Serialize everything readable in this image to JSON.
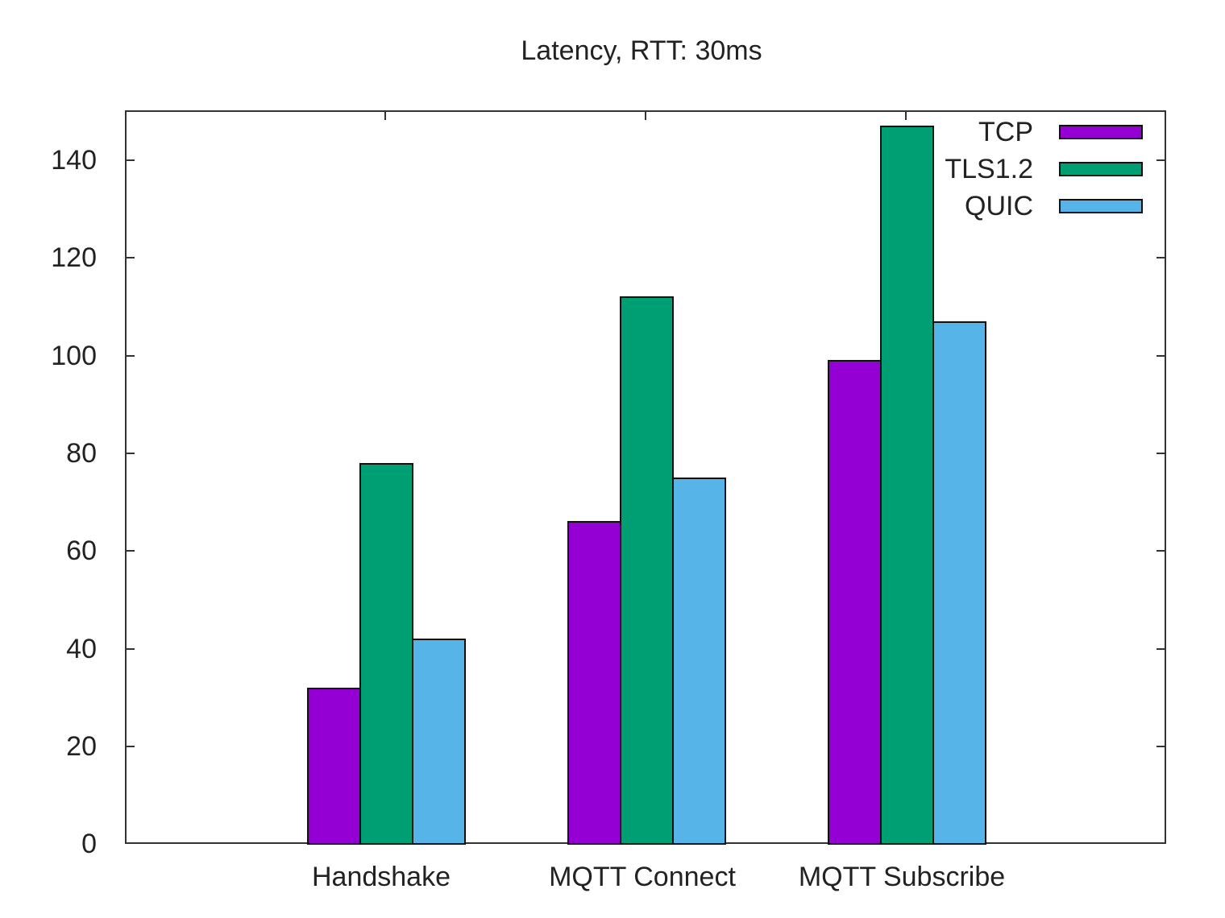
{
  "chart_data": {
    "type": "bar",
    "title": "Latency, RTT: 30ms",
    "xlabel": "",
    "ylabel": "",
    "categories": [
      "Handshake",
      "MQTT Connect",
      "MQTT Subscribe"
    ],
    "series": [
      {
        "name": "TCP",
        "color": "#9400d3",
        "values": [
          32,
          66,
          99
        ]
      },
      {
        "name": "TLS1.2",
        "color": "#009e73",
        "values": [
          78,
          112,
          147
        ]
      },
      {
        "name": "QUIC",
        "color": "#56b4e9",
        "values": [
          42,
          75,
          107
        ]
      }
    ],
    "ylim": [
      0,
      150
    ],
    "yticks": [
      0,
      20,
      40,
      60,
      80,
      100,
      120,
      140
    ],
    "grid": false,
    "legend_position": "top-right (inside)"
  },
  "title": "Latency, RTT: 30ms",
  "legend": {
    "items": [
      {
        "label": "TCP"
      },
      {
        "label": "TLS1.2"
      },
      {
        "label": "QUIC"
      }
    ]
  },
  "yaxis": {
    "ticks": [
      "0",
      "20",
      "40",
      "60",
      "80",
      "100",
      "120",
      "140"
    ]
  },
  "xaxis": {
    "categories": [
      "Handshake",
      "MQTT Connect",
      "MQTT Subscribe"
    ]
  }
}
